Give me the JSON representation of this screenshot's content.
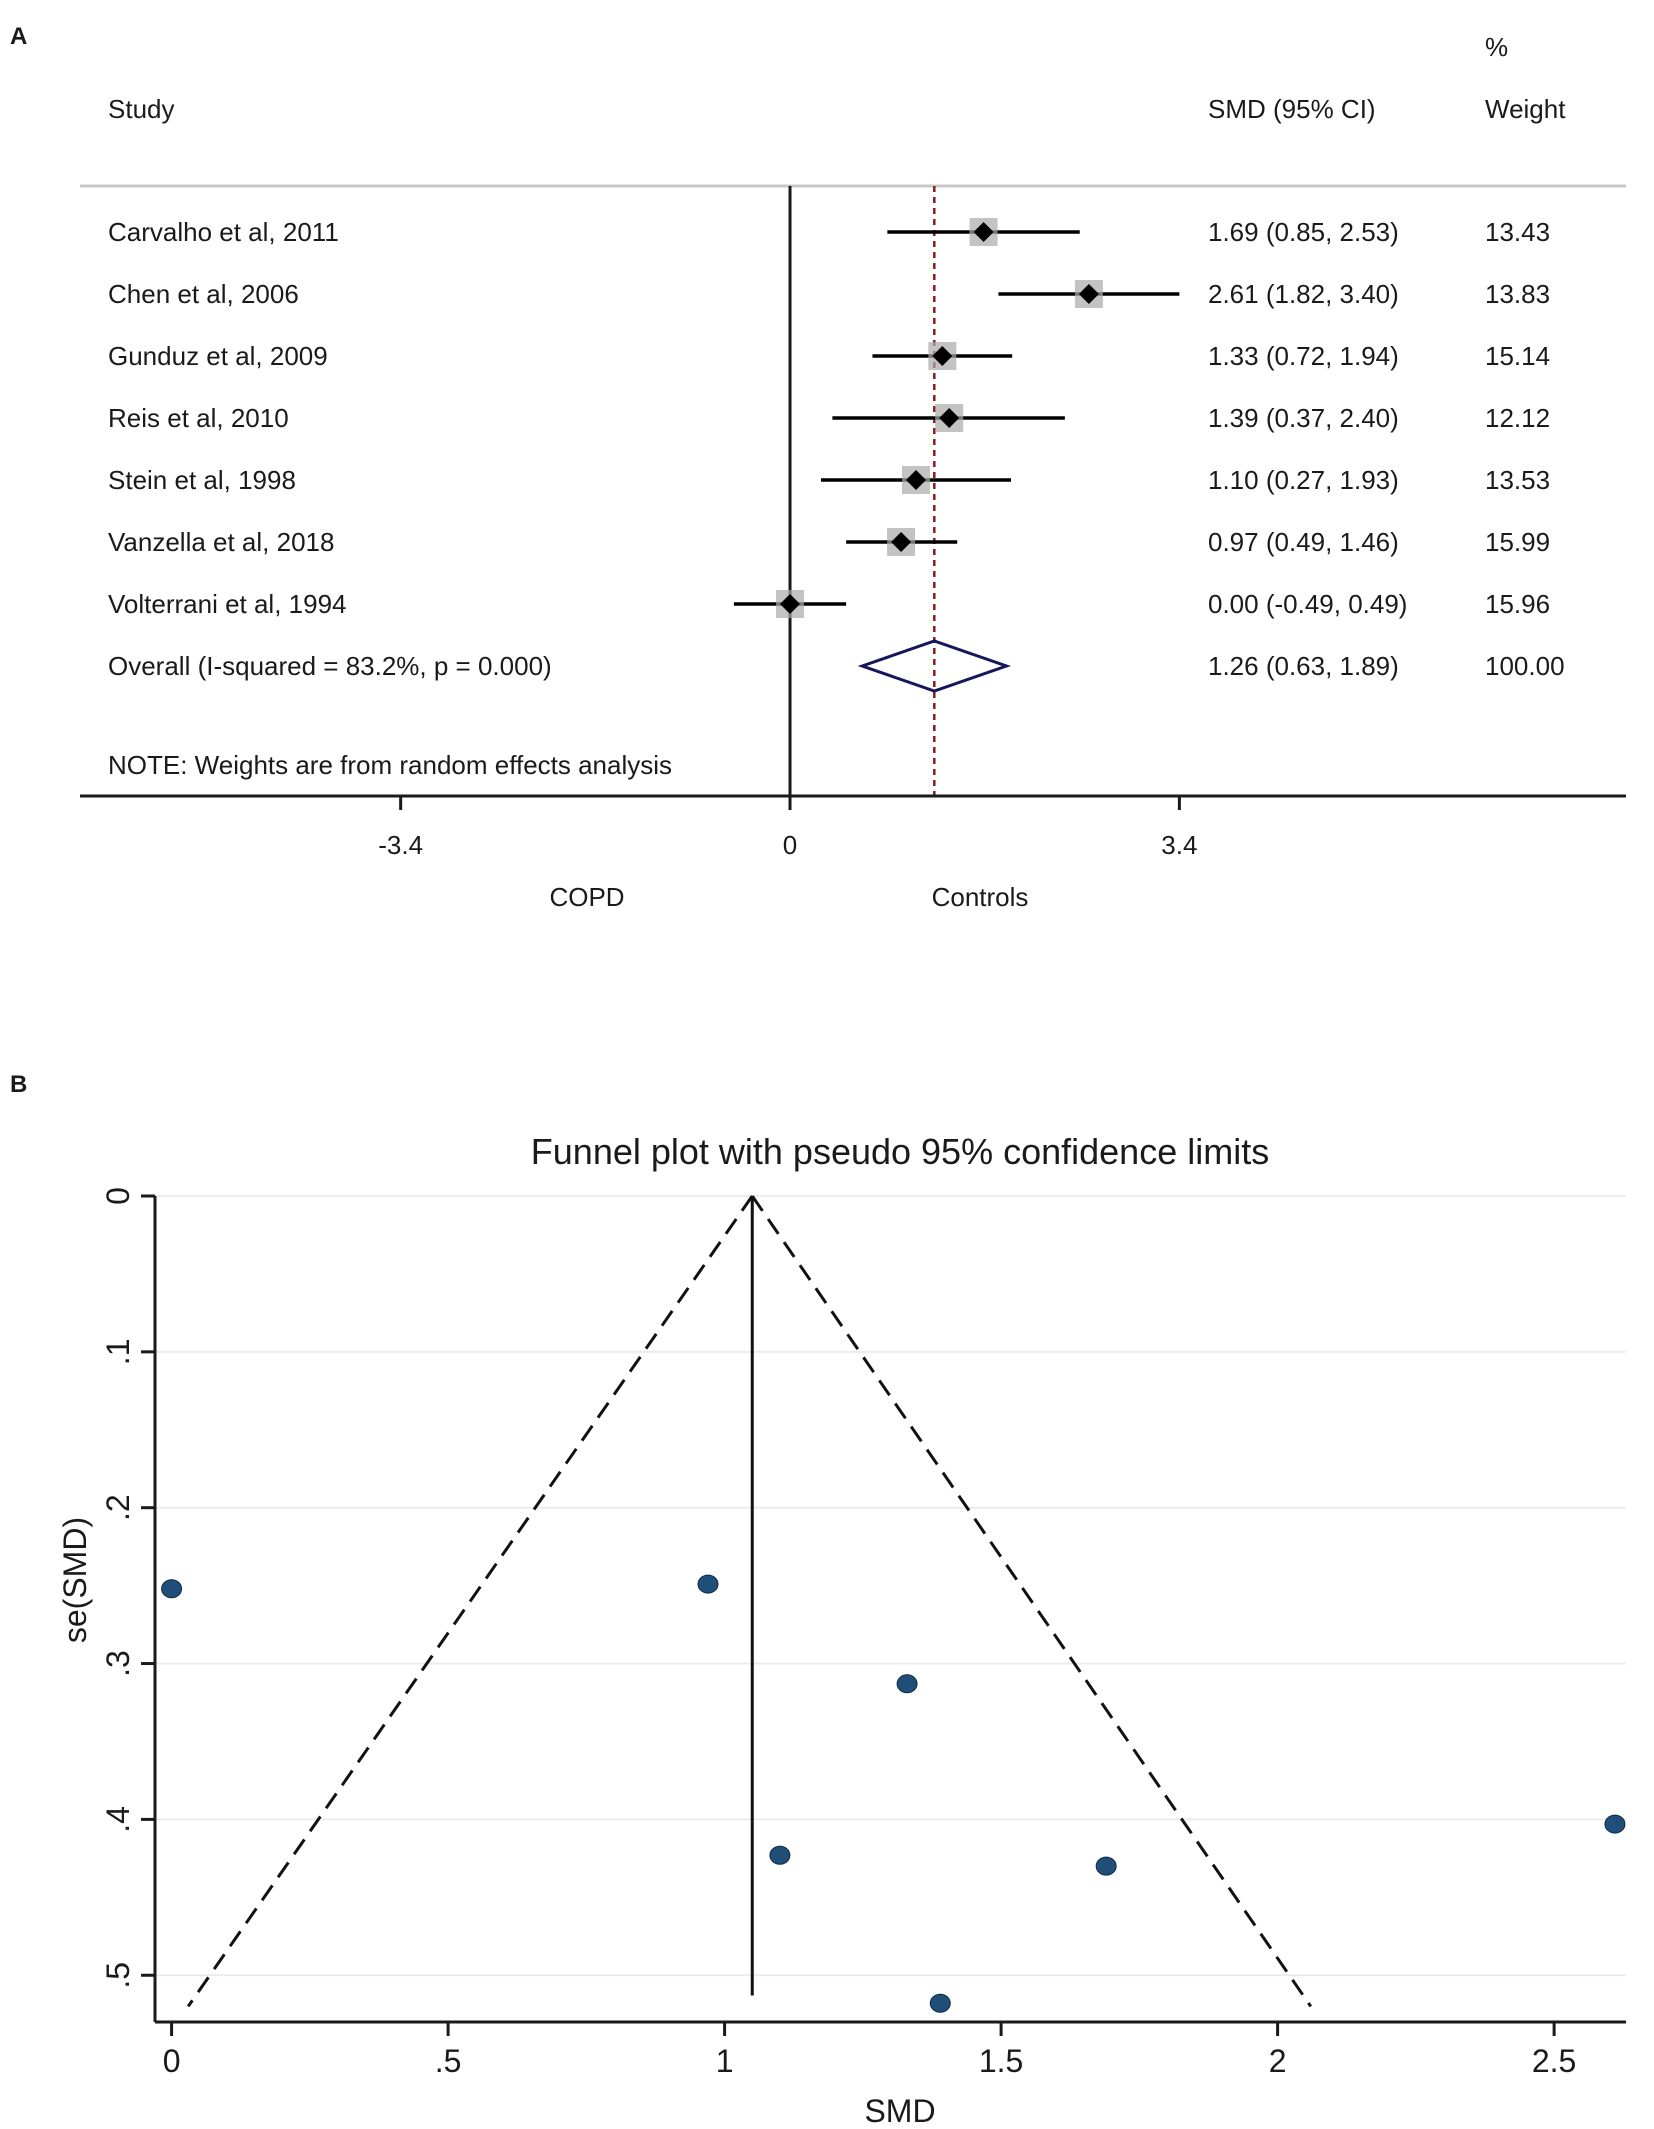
{
  "panel_a_label": "A",
  "panel_b_label": "B",
  "chart_data": [
    {
      "type": "forest",
      "headers": {
        "study": "Study",
        "smd": "SMD (95% CI)",
        "weight_pct": "%",
        "weight": "Weight"
      },
      "studies": [
        {
          "name": "Carvalho et al, 2011",
          "smd": 1.69,
          "lo": 0.85,
          "hi": 2.53,
          "ci_text": "1.69 (0.85, 2.53)",
          "weight": "13.43"
        },
        {
          "name": "Chen et al, 2006",
          "smd": 2.61,
          "lo": 1.82,
          "hi": 3.4,
          "ci_text": "2.61 (1.82, 3.40)",
          "weight": "13.83"
        },
        {
          "name": "Gunduz et al, 2009",
          "smd": 1.33,
          "lo": 0.72,
          "hi": 1.94,
          "ci_text": "1.33 (0.72, 1.94)",
          "weight": "15.14"
        },
        {
          "name": "Reis et al, 2010",
          "smd": 1.39,
          "lo": 0.37,
          "hi": 2.4,
          "ci_text": "1.39 (0.37, 2.40)",
          "weight": "12.12"
        },
        {
          "name": "Stein et al, 1998",
          "smd": 1.1,
          "lo": 0.27,
          "hi": 1.93,
          "ci_text": "1.10 (0.27, 1.93)",
          "weight": "13.53"
        },
        {
          "name": "Vanzella et al, 2018",
          "smd": 0.97,
          "lo": 0.49,
          "hi": 1.46,
          "ci_text": "0.97 (0.49, 1.46)",
          "weight": "15.99"
        },
        {
          "name": "Volterrani et al, 1994",
          "smd": 0.0,
          "lo": -0.49,
          "hi": 0.49,
          "ci_text": "0.00 (-0.49, 0.49)",
          "weight": "15.96"
        }
      ],
      "overall": {
        "name": "Overall  (I-squared = 83.2%, p = 0.000)",
        "smd": 1.26,
        "lo": 0.63,
        "hi": 1.89,
        "ci_text": "1.26 (0.63, 1.89)",
        "weight": "100.00"
      },
      "note": "NOTE: Weights are from random effects analysis",
      "xticks": [
        -3.4,
        0,
        3.4
      ],
      "xtick_labels": [
        "-3.4",
        "0",
        "3.4"
      ],
      "xlim": [
        -6.2,
        7.3
      ],
      "left_label": "COPD",
      "right_label": "Controls"
    },
    {
      "type": "scatter",
      "title": "Funnel plot with pseudo 95% confidence limits",
      "xlabel": "SMD",
      "ylabel": "se(SMD)",
      "pooled": 1.05,
      "xlim": [
        -0.03,
        2.63
      ],
      "ylim": [
        0,
        0.53
      ],
      "xticks": [
        0,
        0.5,
        1,
        1.5,
        2,
        2.5
      ],
      "xtick_labels": [
        "0",
        ".5",
        "1",
        "1.5",
        "2",
        "2.5"
      ],
      "yticks": [
        0,
        0.1,
        0.2,
        0.3,
        0.4,
        0.5
      ],
      "ytick_labels": [
        "0",
        ".1",
        ".2",
        ".3",
        ".4",
        ".5"
      ],
      "funnel": {
        "apex": [
          1.05,
          0
        ],
        "left_end": [
          0.03,
          0.52
        ],
        "right_end": [
          2.06,
          0.52
        ]
      },
      "points": [
        {
          "x": 0.0,
          "y": 0.252
        },
        {
          "x": 0.97,
          "y": 0.249
        },
        {
          "x": 1.33,
          "y": 0.313
        },
        {
          "x": 2.61,
          "y": 0.403
        },
        {
          "x": 1.1,
          "y": 0.423
        },
        {
          "x": 1.69,
          "y": 0.43
        },
        {
          "x": 1.39,
          "y": 0.518
        }
      ],
      "point_color": "#1f4e79"
    }
  ]
}
